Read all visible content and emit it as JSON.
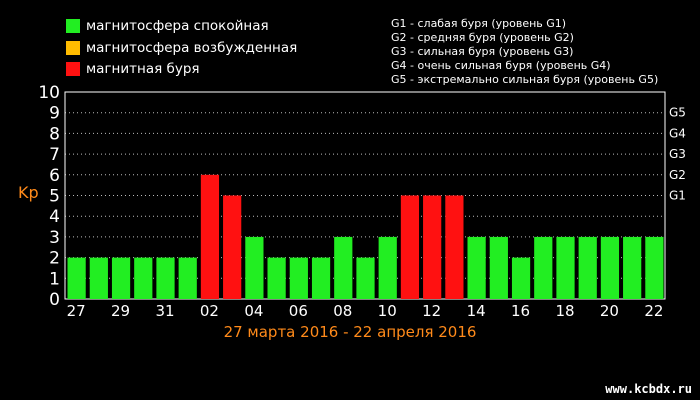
{
  "legend": [
    {
      "label": "магнитосфера спокойная",
      "color": "#22ee22"
    },
    {
      "label": "магнитосфера возбужденная",
      "color": "#ffbb00"
    },
    {
      "label": "магнитная буря",
      "color": "#ff1111"
    }
  ],
  "storm_levels": [
    "G1 - слабая буря (уровень G1)",
    "G2 - средняя буря (уровень G2)",
    "G3 - сильная буря (уровень G3)",
    "G4 - очень сильная буря (уровень G4)",
    "G5 - экстремально сильная буря (уровень G5)"
  ],
  "watermark": "www.kcbdx.ru",
  "chart_data": {
    "type": "bar",
    "title": "",
    "xlabel": "27 марта 2016 - 22 апреля 2016",
    "ylabel": "Kp",
    "ylim": [
      0,
      10
    ],
    "yticks": [
      "0",
      "1",
      "2",
      "3",
      "4",
      "5",
      "6",
      "7",
      "8",
      "9",
      "10"
    ],
    "right_ticks": [
      {
        "label": "G1",
        "value": 5
      },
      {
        "label": "G2",
        "value": 6
      },
      {
        "label": "G3",
        "value": 7
      },
      {
        "label": "G4",
        "value": 8
      },
      {
        "label": "G5",
        "value": 9
      }
    ],
    "xtick_labels": [
      "27",
      "29",
      "31",
      "02",
      "04",
      "06",
      "08",
      "10",
      "12",
      "14",
      "16",
      "18",
      "20",
      "22"
    ],
    "values": [
      2,
      2,
      2,
      2,
      2,
      2,
      6,
      5,
      3,
      2,
      2,
      2,
      3,
      2,
      3,
      5,
      5,
      5,
      3,
      3,
      2,
      3,
      3,
      3,
      3,
      3,
      3
    ],
    "colors": [
      "green",
      "green",
      "green",
      "green",
      "green",
      "green",
      "red",
      "red",
      "green",
      "green",
      "green",
      "green",
      "green",
      "green",
      "green",
      "red",
      "red",
      "red",
      "green",
      "green",
      "green",
      "green",
      "green",
      "green",
      "green",
      "green",
      "green"
    ],
    "color_map": {
      "green": "#22ee22",
      "red": "#ff1111"
    },
    "grid": true
  }
}
